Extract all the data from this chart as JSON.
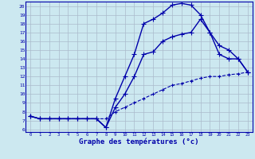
{
  "xlabel": "Graphe des températures (°c)",
  "bg_color": "#cce8f0",
  "line_color": "#0000aa",
  "grid_color": "#aabbcc",
  "x_ticks": [
    0,
    1,
    2,
    3,
    4,
    5,
    6,
    7,
    8,
    9,
    10,
    11,
    12,
    13,
    14,
    15,
    16,
    17,
    18,
    19,
    20,
    21,
    22,
    23
  ],
  "y_ticks": [
    6,
    7,
    8,
    9,
    10,
    11,
    12,
    13,
    14,
    15,
    16,
    17,
    18,
    19,
    20
  ],
  "ylim": [
    5.7,
    20.5
  ],
  "xlim": [
    -0.5,
    23.5
  ],
  "series": [
    {
      "x": [
        0,
        1,
        2,
        3,
        4,
        5,
        6,
        7,
        8,
        9,
        10,
        11,
        12,
        13,
        14,
        15,
        16,
        17,
        18,
        19,
        20,
        21,
        22,
        23
      ],
      "y": [
        7.5,
        7.2,
        7.2,
        7.2,
        7.2,
        7.2,
        7.2,
        7.2,
        6.2,
        9.5,
        12,
        14.5,
        18.0,
        18.5,
        19.2,
        20.1,
        20.3,
        20.1,
        19.0,
        17.0,
        14.5,
        14.0,
        14.0,
        12.5
      ],
      "marker": "+",
      "linestyle": "-",
      "linewidth": 1.0,
      "markersize": 4
    },
    {
      "x": [
        0,
        1,
        2,
        3,
        4,
        5,
        6,
        7,
        8,
        9,
        10,
        11,
        12,
        13,
        14,
        15,
        16,
        17,
        18,
        19,
        20,
        21,
        22,
        23
      ],
      "y": [
        7.5,
        7.2,
        7.2,
        7.2,
        7.2,
        7.2,
        7.2,
        7.2,
        6.2,
        8.5,
        10,
        12,
        14.5,
        14.8,
        16,
        16.5,
        16.8,
        17.0,
        18.5,
        17.0,
        15.5,
        15.0,
        14.0,
        12.5
      ],
      "marker": "+",
      "linestyle": "-",
      "linewidth": 1.0,
      "markersize": 4
    },
    {
      "x": [
        0,
        1,
        2,
        3,
        4,
        5,
        6,
        7,
        8,
        9,
        10,
        11,
        12,
        13,
        14,
        15,
        16,
        17,
        18,
        19,
        20,
        21,
        22,
        23
      ],
      "y": [
        7.5,
        7.2,
        7.2,
        7.2,
        7.2,
        7.2,
        7.2,
        7.2,
        7.2,
        8.0,
        8.5,
        9.0,
        9.5,
        10.0,
        10.5,
        11.0,
        11.2,
        11.5,
        11.8,
        12.0,
        12.0,
        12.2,
        12.3,
        12.5
      ],
      "marker": "+",
      "linestyle": "--",
      "linewidth": 0.8,
      "markersize": 2.5
    }
  ]
}
